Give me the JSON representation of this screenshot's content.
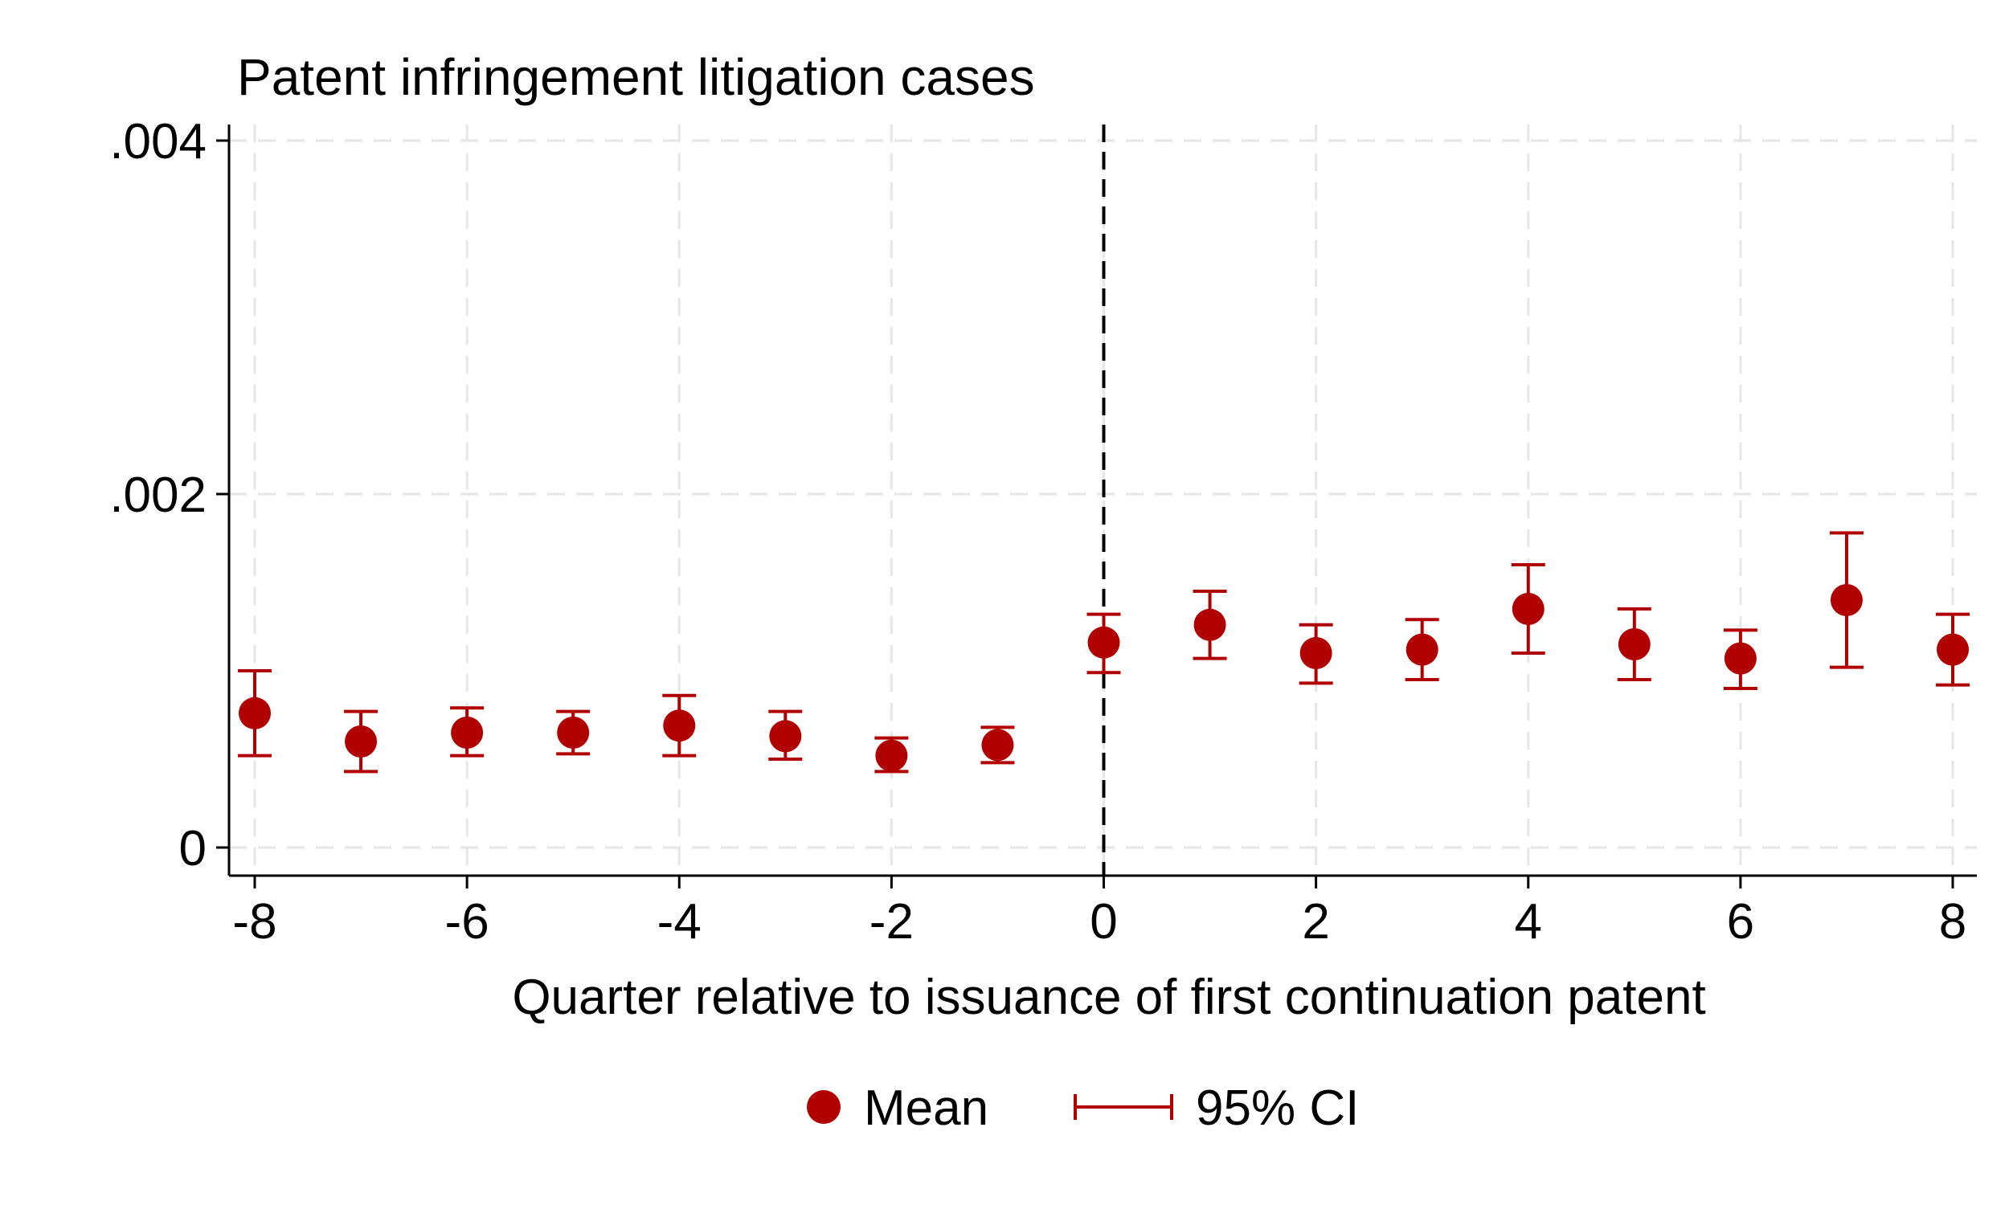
{
  "chart_data": {
    "type": "scatter",
    "title": "Patent infringement litigation cases",
    "xlabel": "Quarter relative to issuance of first continuation patent",
    "ylabel": "",
    "xlim": [
      -8,
      8
    ],
    "ylim": [
      0,
      0.004
    ],
    "xticks": [
      -8,
      -6,
      -4,
      -2,
      0,
      2,
      4,
      6,
      8
    ],
    "xtick_labels": [
      "-8",
      "-6",
      "-4",
      "-2",
      "0",
      "2",
      "4",
      "6",
      "8"
    ],
    "yticks": [
      0,
      0.002,
      0.004
    ],
    "ytick_labels": [
      "0",
      ".002",
      ".004"
    ],
    "grid": true,
    "reference_line": {
      "x": 0,
      "style": "dashed",
      "color": "#000000"
    },
    "series_color": "#b00000",
    "series": [
      {
        "name": "Mean",
        "x": [
          -8,
          -7,
          -6,
          -5,
          -4,
          -3,
          -2,
          -1,
          0,
          1,
          2,
          3,
          4,
          5,
          6,
          7,
          8
        ],
        "mean": [
          0.00076,
          0.0006,
          0.00065,
          0.00065,
          0.00069,
          0.00063,
          0.00052,
          0.00058,
          0.00116,
          0.00126,
          0.0011,
          0.00112,
          0.00135,
          0.00115,
          0.00107,
          0.0014,
          0.00112
        ],
        "ci_low": [
          0.00052,
          0.00043,
          0.00052,
          0.00053,
          0.00052,
          0.0005,
          0.00043,
          0.00048,
          0.00099,
          0.00107,
          0.00093,
          0.00095,
          0.0011,
          0.00095,
          0.0009,
          0.00102,
          0.00092
        ],
        "ci_high": [
          0.001,
          0.00077,
          0.00079,
          0.00077,
          0.00086,
          0.00077,
          0.00062,
          0.00068,
          0.00132,
          0.00145,
          0.00126,
          0.00129,
          0.0016,
          0.00135,
          0.00123,
          0.00178,
          0.00132
        ]
      }
    ],
    "legend": {
      "placement": "bottom",
      "items": [
        "Mean",
        "95% CI"
      ]
    }
  }
}
